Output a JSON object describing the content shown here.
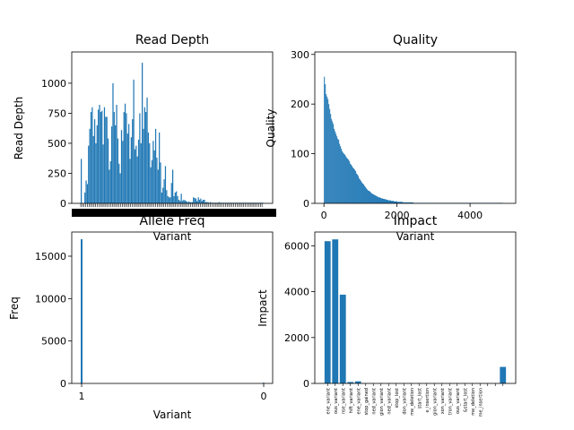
{
  "chart_data": [
    {
      "type": "bar",
      "title": "Read Depth",
      "xlabel": "Variant",
      "ylabel": "Read Depth",
      "x_tick_labels_note": "dense overlapping labels",
      "yticks": [
        0,
        250,
        500,
        750,
        1000
      ],
      "ylim": [
        0,
        1260
      ],
      "values": [
        370,
        0,
        0,
        90,
        190,
        160,
        480,
        620,
        760,
        800,
        560,
        700,
        500,
        650,
        780,
        820,
        760,
        770,
        490,
        800,
        720,
        720,
        540,
        280,
        350,
        640,
        1000,
        760,
        650,
        820,
        540,
        330,
        250,
        610,
        520,
        760,
        830,
        750,
        580,
        660,
        370,
        550,
        700,
        1030,
        450,
        480,
        390,
        530,
        750,
        500,
        1170,
        620,
        800,
        760,
        880,
        590,
        500,
        300,
        360,
        520,
        440,
        620,
        380,
        280,
        590,
        340,
        90,
        130,
        200,
        310,
        110,
        60,
        50,
        50,
        170,
        280,
        60,
        90,
        100,
        60,
        30,
        20,
        80,
        20,
        30,
        25,
        20,
        10,
        15,
        10,
        10,
        10,
        50,
        45,
        40,
        20,
        50,
        30,
        40,
        20,
        30,
        30,
        10,
        10,
        10,
        5,
        10,
        5,
        5,
        5,
        5,
        5,
        5,
        10,
        5,
        5,
        5,
        5,
        5,
        5,
        5,
        5,
        5,
        5,
        5,
        5,
        5,
        5,
        5,
        5,
        5,
        5,
        5,
        5,
        5,
        5,
        5,
        5,
        5,
        5,
        5,
        5,
        5,
        5,
        5,
        5,
        5,
        5,
        5,
        5
      ]
    },
    {
      "type": "bar",
      "title": "Quality",
      "xlabel": "Variant",
      "ylabel": "Quality",
      "xticks": [
        0,
        2000,
        4000
      ],
      "yticks": [
        0,
        100,
        200,
        300
      ],
      "xlim": [
        -250,
        5250
      ],
      "ylim": [
        0,
        305
      ],
      "values": [
        255,
        240,
        220,
        215,
        210,
        200,
        190,
        180,
        170,
        165,
        160,
        150,
        145,
        140,
        135,
        130,
        128,
        120,
        115,
        110,
        105,
        102,
        100,
        98,
        95,
        92,
        90,
        88,
        85,
        80,
        78,
        75,
        72,
        70,
        68,
        65,
        60,
        58,
        55,
        50,
        48,
        45,
        42,
        40,
        38,
        35,
        33,
        30,
        28,
        26,
        25,
        24,
        22,
        20,
        19,
        18,
        17,
        16,
        15,
        14,
        13,
        12,
        12,
        11,
        10,
        10,
        9,
        9,
        8,
        8,
        7,
        7,
        6,
        6,
        6,
        5,
        5,
        5,
        4,
        4,
        4,
        4,
        3,
        3,
        3,
        3,
        3,
        3,
        2,
        2,
        2,
        2,
        2,
        2,
        2,
        2,
        2,
        2,
        2,
        2,
        1,
        1,
        1,
        1,
        1,
        1,
        1,
        1,
        1,
        1,
        1,
        1,
        1,
        1,
        1,
        1,
        1,
        1,
        1,
        1,
        1,
        1,
        1,
        1,
        1,
        1,
        1,
        1,
        1,
        1,
        1,
        1,
        1,
        1,
        1,
        1,
        1,
        1,
        1,
        1,
        1,
        1,
        1,
        1,
        1,
        1,
        1,
        1,
        1,
        1,
        1,
        1,
        1,
        1,
        1,
        1,
        1,
        1,
        1,
        1,
        1,
        1,
        1,
        1,
        1,
        1,
        1,
        1,
        1,
        1,
        1,
        1,
        1,
        1,
        1,
        1,
        1,
        1,
        1,
        1,
        1,
        1,
        1,
        1,
        1,
        1,
        1,
        1,
        1,
        1,
        1,
        1,
        1,
        1,
        1,
        1,
        1,
        1,
        1,
        1
      ],
      "x_range": [
        0,
        4900
      ]
    },
    {
      "type": "bar",
      "title": "Allele Freq",
      "xlabel": "Variant",
      "ylabel": "Freq",
      "categories": [
        "1",
        "0"
      ],
      "values": [
        17000,
        80
      ],
      "yticks": [
        0,
        5000,
        10000,
        15000
      ],
      "ylim": [
        0,
        17850
      ]
    },
    {
      "type": "bar",
      "title": "Impact",
      "xlabel": "",
      "ylabel": "Impact",
      "categories": [
        "ene_variant",
        "ous_variant",
        "nse_variant",
        "hift_variant",
        "ene_variant",
        "stop_gained",
        "ned_variant",
        "gion_variant",
        "ned_variant",
        "stop_lost",
        "don_variant",
        "me_deletion",
        "start_lost",
        "e_insertion",
        "gion_variant",
        "xon_variant",
        "tron_variant",
        "ous_variant",
        "&start_lost",
        "me_deletion",
        "me_insertion",
        "",
        "",
        ""
      ],
      "values": [
        6200,
        6280,
        3870,
        60,
        90,
        10,
        5,
        5,
        5,
        5,
        5,
        5,
        5,
        5,
        5,
        5,
        5,
        5,
        5,
        5,
        5,
        5,
        5,
        720
      ],
      "yticks": [
        0,
        2000,
        4000,
        6000
      ],
      "ylim": [
        0,
        6600
      ]
    }
  ]
}
